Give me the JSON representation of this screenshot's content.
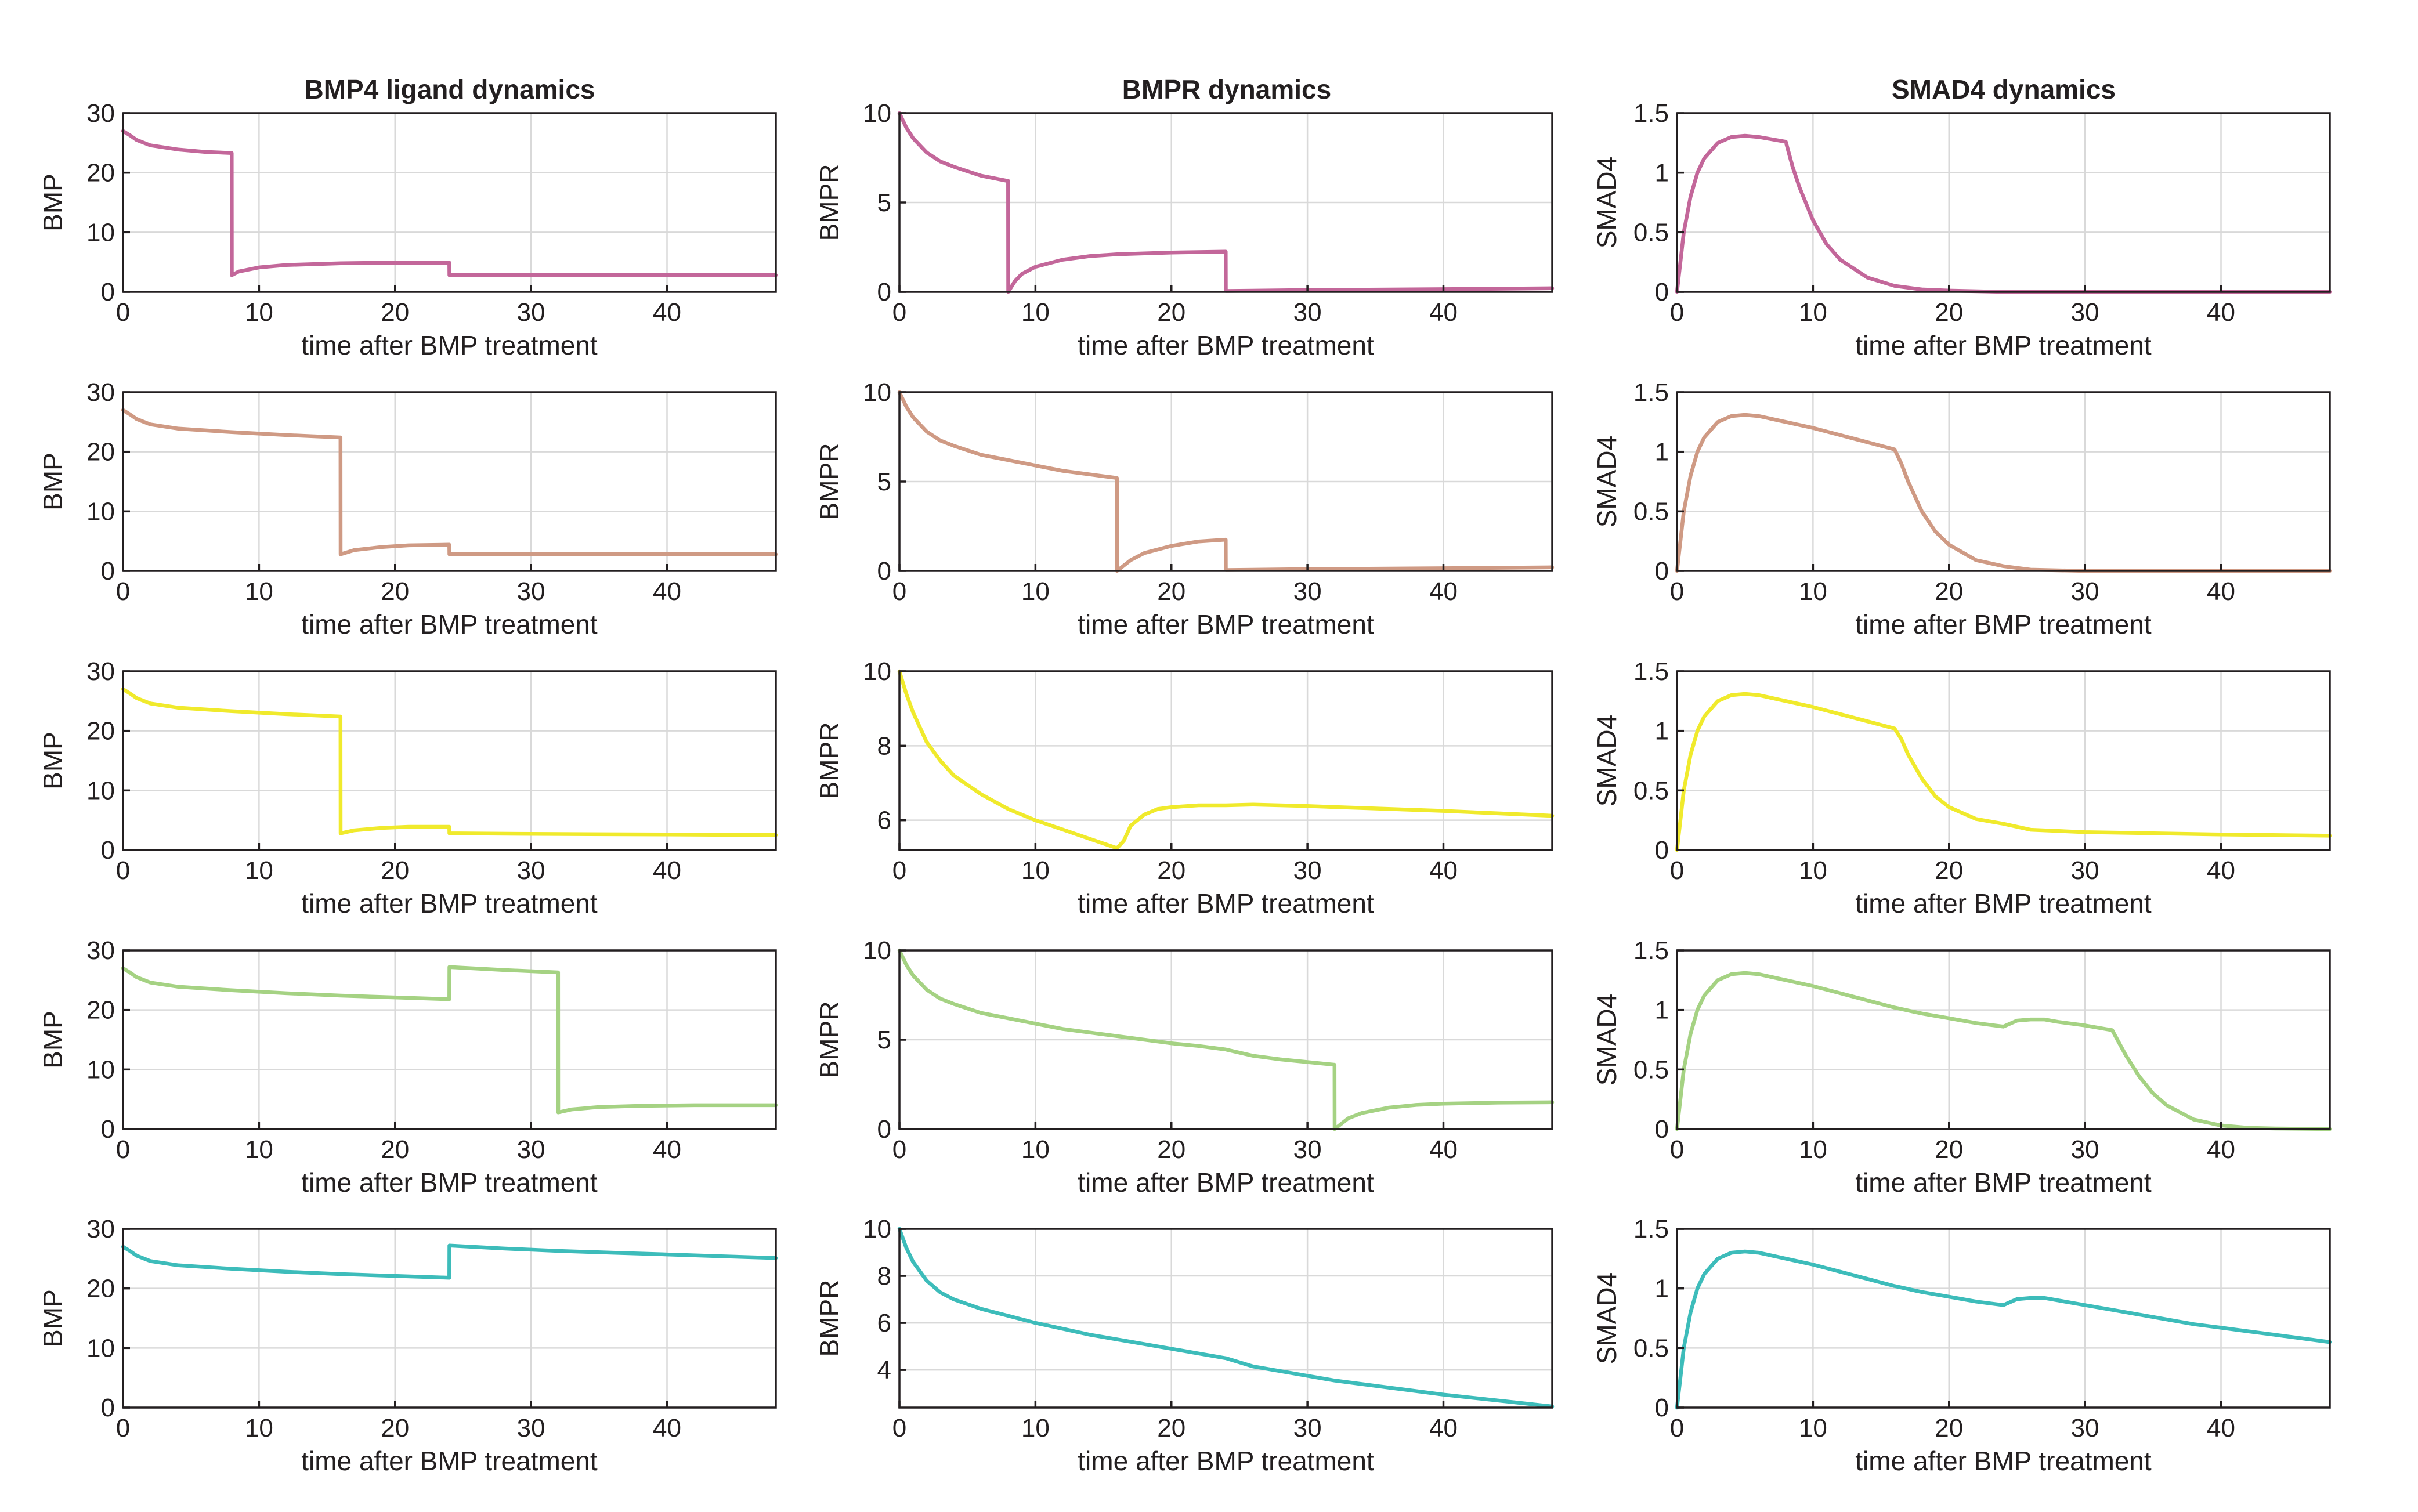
{
  "column_titles": [
    "BMP4 ligand dynamics",
    "BMPR dynamics",
    "SMAD4 dynamics"
  ],
  "colors": {
    "row1": "#c3679a",
    "row2": "#cf9a84",
    "row3": "#f0ea2c",
    "row4": "#a5d283",
    "row5": "#3dbcba"
  },
  "chart_data": [
    {
      "type": "line",
      "row": 1,
      "col": 1,
      "title": "BMP4 ligand dynamics",
      "xlabel": "time after BMP treatment",
      "ylabel": "BMP",
      "xlim": [
        0,
        48
      ],
      "ylim": [
        0,
        30
      ],
      "xticks": [
        0,
        10,
        20,
        30,
        40
      ],
      "yticks": [
        0,
        10,
        20,
        30
      ],
      "grid": true,
      "color": "#c3679a",
      "x": [
        0,
        0.5,
        1,
        2,
        4,
        6,
        7.99,
        8,
        8.5,
        10,
        12,
        16,
        20,
        23.99,
        24,
        30,
        40,
        48
      ],
      "y": [
        27,
        26.3,
        25.5,
        24.6,
        23.9,
        23.5,
        23.3,
        2.8,
        3.4,
        4.1,
        4.5,
        4.8,
        4.9,
        4.9,
        2.8,
        2.8,
        2.8,
        2.8
      ]
    },
    {
      "type": "line",
      "row": 1,
      "col": 2,
      "title": "BMPR dynamics",
      "xlabel": "time after BMP treatment",
      "ylabel": "BMPR",
      "xlim": [
        0,
        48
      ],
      "ylim": [
        0,
        10
      ],
      "xticks": [
        0,
        10,
        20,
        30,
        40
      ],
      "yticks": [
        0,
        5,
        10
      ],
      "grid": true,
      "color": "#c3679a",
      "x": [
        0,
        0.5,
        1,
        2,
        3,
        4,
        6,
        7.99,
        8,
        8.5,
        9,
        10,
        12,
        14,
        16,
        20,
        23.99,
        24,
        30,
        40,
        48
      ],
      "y": [
        10,
        9.2,
        8.6,
        7.8,
        7.3,
        7.0,
        6.5,
        6.2,
        0,
        0.6,
        1.0,
        1.4,
        1.8,
        2.0,
        2.1,
        2.2,
        2.25,
        0.05,
        0.1,
        0.15,
        0.2
      ]
    },
    {
      "type": "line",
      "row": 1,
      "col": 3,
      "title": "SMAD4 dynamics",
      "xlabel": "time after BMP treatment",
      "ylabel": "SMAD4",
      "xlim": [
        0,
        48
      ],
      "ylim": [
        0,
        1.5
      ],
      "xticks": [
        0,
        10,
        20,
        30,
        40
      ],
      "yticks": [
        0,
        0.5,
        1,
        1.5
      ],
      "grid": true,
      "color": "#c3679a",
      "x": [
        0,
        0.25,
        0.5,
        1,
        1.5,
        2,
        3,
        4,
        5,
        6,
        7,
        8,
        8.5,
        9,
        10,
        11,
        12,
        14,
        16,
        18,
        20,
        24,
        30,
        40,
        48
      ],
      "y": [
        0,
        0.25,
        0.5,
        0.8,
        1.0,
        1.12,
        1.25,
        1.3,
        1.31,
        1.3,
        1.28,
        1.26,
        1.05,
        0.88,
        0.6,
        0.4,
        0.27,
        0.12,
        0.05,
        0.02,
        0.01,
        0,
        0,
        0,
        0
      ]
    },
    {
      "type": "line",
      "row": 2,
      "col": 1,
      "xlabel": "time after BMP treatment",
      "ylabel": "BMP",
      "xlim": [
        0,
        48
      ],
      "ylim": [
        0,
        30
      ],
      "xticks": [
        0,
        10,
        20,
        30,
        40
      ],
      "yticks": [
        0,
        10,
        20,
        30
      ],
      "grid": true,
      "color": "#cf9a84",
      "x": [
        0,
        0.5,
        1,
        2,
        4,
        8,
        12,
        15.99,
        16,
        17,
        19,
        21,
        23.99,
        24,
        30,
        40,
        48
      ],
      "y": [
        27,
        26.3,
        25.5,
        24.6,
        23.9,
        23.3,
        22.8,
        22.4,
        2.8,
        3.5,
        4.0,
        4.3,
        4.4,
        2.8,
        2.8,
        2.8,
        2.8
      ]
    },
    {
      "type": "line",
      "row": 2,
      "col": 2,
      "xlabel": "time after BMP treatment",
      "ylabel": "BMPR",
      "xlim": [
        0,
        48
      ],
      "ylim": [
        0,
        10
      ],
      "xticks": [
        0,
        10,
        20,
        30,
        40
      ],
      "yticks": [
        0,
        5,
        10
      ],
      "grid": true,
      "color": "#cf9a84",
      "x": [
        0,
        0.5,
        1,
        2,
        3,
        4,
        6,
        8,
        10,
        12,
        14,
        15.99,
        16,
        17,
        18,
        20,
        22,
        23.99,
        24,
        30,
        40,
        48
      ],
      "y": [
        10,
        9.2,
        8.6,
        7.8,
        7.3,
        7.0,
        6.5,
        6.2,
        5.9,
        5.6,
        5.4,
        5.2,
        0,
        0.6,
        1.0,
        1.4,
        1.65,
        1.75,
        0.05,
        0.1,
        0.15,
        0.2
      ]
    },
    {
      "type": "line",
      "row": 2,
      "col": 3,
      "xlabel": "time after BMP treatment",
      "ylabel": "SMAD4",
      "xlim": [
        0,
        48
      ],
      "ylim": [
        0,
        1.5
      ],
      "xticks": [
        0,
        10,
        20,
        30,
        40
      ],
      "yticks": [
        0,
        0.5,
        1,
        1.5
      ],
      "grid": true,
      "color": "#cf9a84",
      "x": [
        0,
        0.25,
        0.5,
        1,
        1.5,
        2,
        3,
        4,
        5,
        6,
        8,
        10,
        12,
        14,
        16,
        16.5,
        17,
        18,
        19,
        20,
        22,
        24,
        26,
        30,
        40,
        48
      ],
      "y": [
        0,
        0.25,
        0.5,
        0.8,
        1.0,
        1.12,
        1.25,
        1.3,
        1.31,
        1.3,
        1.25,
        1.2,
        1.14,
        1.08,
        1.02,
        0.9,
        0.75,
        0.5,
        0.33,
        0.22,
        0.09,
        0.04,
        0.01,
        0,
        0,
        0
      ]
    },
    {
      "type": "line",
      "row": 3,
      "col": 1,
      "xlabel": "time after BMP treatment",
      "ylabel": "BMP",
      "xlim": [
        0,
        48
      ],
      "ylim": [
        0,
        30
      ],
      "xticks": [
        0,
        10,
        20,
        30,
        40
      ],
      "yticks": [
        0,
        10,
        20,
        30
      ],
      "grid": true,
      "color": "#f0ea2c",
      "x": [
        0,
        0.5,
        1,
        2,
        4,
        8,
        12,
        15.99,
        16,
        17,
        19,
        21,
        23.99,
        24,
        30,
        40,
        48
      ],
      "y": [
        27,
        26.3,
        25.5,
        24.6,
        23.9,
        23.3,
        22.8,
        22.4,
        2.8,
        3.3,
        3.7,
        3.9,
        3.9,
        2.8,
        2.7,
        2.6,
        2.5
      ]
    },
    {
      "type": "line",
      "row": 3,
      "col": 2,
      "xlabel": "time after BMP treatment",
      "ylabel": "BMPR",
      "xlim": [
        0,
        48
      ],
      "ylim": [
        5.2,
        10
      ],
      "xticks": [
        0,
        10,
        20,
        30,
        40
      ],
      "yticks": [
        6,
        8,
        10
      ],
      "grid": true,
      "color": "#f0ea2c",
      "x": [
        0,
        0.5,
        1,
        2,
        3,
        4,
        6,
        8,
        10,
        12,
        14,
        16,
        16.5,
        17,
        18,
        19,
        20,
        22,
        24,
        26,
        30,
        40,
        48
      ],
      "y": [
        10,
        9.4,
        8.9,
        8.1,
        7.6,
        7.2,
        6.7,
        6.3,
        6.0,
        5.75,
        5.5,
        5.25,
        5.45,
        5.85,
        6.15,
        6.3,
        6.35,
        6.4,
        6.4,
        6.42,
        6.38,
        6.25,
        6.12
      ]
    },
    {
      "type": "line",
      "row": 3,
      "col": 3,
      "xlabel": "time after BMP treatment",
      "ylabel": "SMAD4",
      "xlim": [
        0,
        48
      ],
      "ylim": [
        0,
        1.5
      ],
      "xticks": [
        0,
        10,
        20,
        30,
        40
      ],
      "yticks": [
        0,
        0.5,
        1,
        1.5
      ],
      "grid": true,
      "color": "#f0ea2c",
      "x": [
        0,
        0.25,
        0.5,
        1,
        1.5,
        2,
        3,
        4,
        5,
        6,
        8,
        10,
        12,
        14,
        16,
        16.5,
        17,
        18,
        19,
        20,
        22,
        24,
        26,
        30,
        40,
        48
      ],
      "y": [
        0,
        0.25,
        0.5,
        0.8,
        1.0,
        1.12,
        1.25,
        1.3,
        1.31,
        1.3,
        1.25,
        1.2,
        1.14,
        1.08,
        1.02,
        0.93,
        0.8,
        0.6,
        0.45,
        0.36,
        0.26,
        0.22,
        0.17,
        0.15,
        0.13,
        0.12
      ]
    },
    {
      "type": "line",
      "row": 4,
      "col": 1,
      "xlabel": "time after BMP treatment",
      "ylabel": "BMP",
      "xlim": [
        0,
        48
      ],
      "ylim": [
        0,
        30
      ],
      "xticks": [
        0,
        10,
        20,
        30,
        40
      ],
      "yticks": [
        0,
        10,
        20,
        30
      ],
      "grid": true,
      "color": "#a5d283",
      "x": [
        0,
        0.5,
        1,
        2,
        4,
        8,
        12,
        16,
        20,
        23.99,
        24,
        28,
        31.99,
        32,
        33,
        35,
        38,
        42,
        48
      ],
      "y": [
        27,
        26.3,
        25.5,
        24.6,
        23.9,
        23.3,
        22.8,
        22.4,
        22.1,
        21.8,
        27.2,
        26.7,
        26.3,
        2.8,
        3.3,
        3.7,
        3.9,
        4.0,
        4.0
      ]
    },
    {
      "type": "line",
      "row": 4,
      "col": 2,
      "xlabel": "time after BMP treatment",
      "ylabel": "BMPR",
      "xlim": [
        0,
        48
      ],
      "ylim": [
        0,
        10
      ],
      "xticks": [
        0,
        10,
        20,
        30,
        40
      ],
      "yticks": [
        0,
        5,
        10
      ],
      "grid": true,
      "color": "#a5d283",
      "x": [
        0,
        0.5,
        1,
        2,
        3,
        4,
        6,
        8,
        10,
        12,
        14,
        16,
        18,
        20,
        22,
        24,
        26,
        28,
        30,
        31.99,
        32,
        33,
        34,
        36,
        38,
        40,
        44,
        48
      ],
      "y": [
        10,
        9.2,
        8.6,
        7.8,
        7.3,
        7.0,
        6.5,
        6.2,
        5.9,
        5.6,
        5.4,
        5.2,
        5.0,
        4.8,
        4.65,
        4.45,
        4.1,
        3.9,
        3.75,
        3.6,
        0,
        0.6,
        0.9,
        1.2,
        1.35,
        1.42,
        1.48,
        1.5
      ]
    },
    {
      "type": "line",
      "row": 4,
      "col": 3,
      "xlabel": "time after BMP treatment",
      "ylabel": "SMAD4",
      "xlim": [
        0,
        48
      ],
      "ylim": [
        0,
        1.5
      ],
      "xticks": [
        0,
        10,
        20,
        30,
        40
      ],
      "yticks": [
        0,
        0.5,
        1,
        1.5
      ],
      "grid": true,
      "color": "#a5d283",
      "x": [
        0,
        0.25,
        0.5,
        1,
        1.5,
        2,
        3,
        4,
        5,
        6,
        8,
        10,
        12,
        14,
        16,
        18,
        20,
        22,
        24,
        25,
        26,
        27,
        28,
        30,
        32,
        33,
        34,
        35,
        36,
        38,
        40,
        42,
        44,
        48
      ],
      "y": [
        0,
        0.25,
        0.5,
        0.8,
        1.0,
        1.12,
        1.25,
        1.3,
        1.31,
        1.3,
        1.25,
        1.2,
        1.14,
        1.08,
        1.02,
        0.97,
        0.93,
        0.89,
        0.86,
        0.91,
        0.92,
        0.92,
        0.9,
        0.87,
        0.83,
        0.62,
        0.44,
        0.3,
        0.2,
        0.08,
        0.03,
        0.01,
        0.005,
        0
      ]
    },
    {
      "type": "line",
      "row": 5,
      "col": 1,
      "xlabel": "time after BMP treatment",
      "ylabel": "BMP",
      "xlim": [
        0,
        48
      ],
      "ylim": [
        0,
        30
      ],
      "xticks": [
        0,
        10,
        20,
        30,
        40
      ],
      "yticks": [
        0,
        10,
        20,
        30
      ],
      "grid": true,
      "color": "#3dbcba",
      "x": [
        0,
        0.5,
        1,
        2,
        4,
        8,
        12,
        16,
        20,
        23.99,
        24,
        28,
        32,
        36,
        40,
        44,
        48
      ],
      "y": [
        27,
        26.3,
        25.5,
        24.6,
        23.9,
        23.3,
        22.8,
        22.4,
        22.1,
        21.8,
        27.2,
        26.7,
        26.3,
        26.0,
        25.7,
        25.4,
        25.1
      ]
    },
    {
      "type": "line",
      "row": 5,
      "col": 2,
      "xlabel": "time after BMP treatment",
      "ylabel": "BMPR",
      "xlim": [
        0,
        48
      ],
      "ylim": [
        2.4,
        10
      ],
      "xticks": [
        0,
        10,
        20,
        30,
        40
      ],
      "yticks": [
        4,
        6,
        8,
        10
      ],
      "grid": true,
      "color": "#3dbcba",
      "x": [
        0,
        0.5,
        1,
        2,
        3,
        4,
        6,
        8,
        10,
        12,
        14,
        16,
        18,
        20,
        22,
        24,
        26,
        28,
        30,
        32,
        36,
        40,
        44,
        48
      ],
      "y": [
        10,
        9.2,
        8.6,
        7.8,
        7.3,
        7.0,
        6.6,
        6.3,
        6.0,
        5.75,
        5.5,
        5.3,
        5.1,
        4.9,
        4.7,
        4.5,
        4.15,
        3.95,
        3.75,
        3.55,
        3.25,
        2.95,
        2.7,
        2.45
      ]
    },
    {
      "type": "line",
      "row": 5,
      "col": 3,
      "xlabel": "time after BMP treatment",
      "ylabel": "SMAD4",
      "xlim": [
        0,
        48
      ],
      "ylim": [
        0,
        1.5
      ],
      "xticks": [
        0,
        10,
        20,
        30,
        40
      ],
      "yticks": [
        0,
        0.5,
        1,
        1.5
      ],
      "grid": true,
      "color": "#3dbcba",
      "x": [
        0,
        0.25,
        0.5,
        1,
        1.5,
        2,
        3,
        4,
        5,
        6,
        8,
        10,
        12,
        14,
        16,
        18,
        20,
        22,
        24,
        25,
        26,
        27,
        28,
        30,
        32,
        34,
        36,
        38,
        40,
        42,
        44,
        46,
        48
      ],
      "y": [
        0,
        0.25,
        0.5,
        0.8,
        1.0,
        1.12,
        1.25,
        1.3,
        1.31,
        1.3,
        1.25,
        1.2,
        1.14,
        1.08,
        1.02,
        0.97,
        0.93,
        0.89,
        0.86,
        0.91,
        0.92,
        0.92,
        0.9,
        0.86,
        0.82,
        0.78,
        0.74,
        0.7,
        0.67,
        0.64,
        0.61,
        0.58,
        0.55
      ]
    }
  ]
}
